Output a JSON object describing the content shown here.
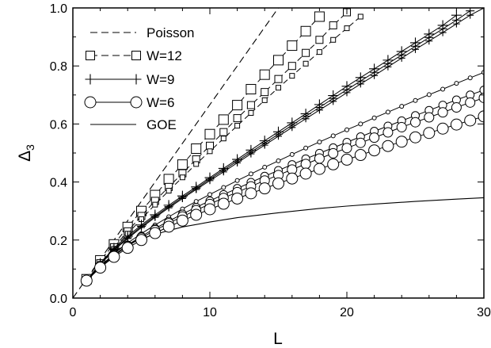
{
  "chart_data": {
    "type": "line",
    "xlabel": "L",
    "ylabel": "Δ3",
    "xlim": [
      0,
      30
    ],
    "ylim": [
      0,
      1.0
    ],
    "x_ticks": [
      "10",
      "20",
      "30"
    ],
    "x_tick_values": [
      10,
      20,
      30
    ],
    "x_zero_label": "0",
    "y_ticks": [
      "0.0",
      "0.2",
      "0.4",
      "0.6",
      "0.8",
      "1.0"
    ],
    "y_tick_values": [
      0.0,
      0.2,
      0.4,
      0.6,
      0.8,
      1.0
    ],
    "grid": false,
    "legend_position": "top-left",
    "legend": [
      {
        "label": "Poisson",
        "style": "dashed",
        "marker": "none"
      },
      {
        "label": "W=12",
        "style": "dashed",
        "marker": "square"
      },
      {
        "label": "W=9",
        "style": "solid",
        "marker": "plus"
      },
      {
        "label": "W=6",
        "style": "solid",
        "marker": "circle"
      },
      {
        "label": "GOE",
        "style": "solid",
        "marker": "none"
      }
    ],
    "poisson": {
      "x": [
        0,
        15.0
      ],
      "y": [
        0,
        1.0
      ]
    },
    "goe": {
      "x": [
        1,
        2,
        3,
        4,
        5,
        6,
        8,
        10,
        12,
        15,
        18,
        20,
        22,
        25,
        28,
        30
      ],
      "y": [
        0.05,
        0.12,
        0.16,
        0.185,
        0.205,
        0.22,
        0.245,
        0.262,
        0.277,
        0.294,
        0.309,
        0.317,
        0.324,
        0.333,
        0.341,
        0.346
      ]
    },
    "series": [
      {
        "group": "W=12",
        "marker": "square",
        "size": "large",
        "dashed": true,
        "x": [
          1,
          2,
          3,
          4,
          5,
          6,
          7,
          8,
          9,
          10,
          11,
          12,
          13,
          14,
          15,
          16,
          17,
          18
        ],
        "y": [
          0.065,
          0.13,
          0.185,
          0.245,
          0.3,
          0.355,
          0.41,
          0.46,
          0.515,
          0.565,
          0.615,
          0.665,
          0.72,
          0.77,
          0.82,
          0.87,
          0.92,
          0.97
        ]
      },
      {
        "group": "W=12",
        "marker": "square",
        "size": "medium",
        "dashed": true,
        "x": [
          1,
          2,
          3,
          4,
          5,
          6,
          7,
          8,
          9,
          10,
          11,
          12,
          13,
          14,
          15,
          16,
          17,
          18,
          19,
          20
        ],
        "y": [
          0.06,
          0.12,
          0.175,
          0.23,
          0.283,
          0.335,
          0.383,
          0.43,
          0.478,
          0.525,
          0.572,
          0.62,
          0.665,
          0.71,
          0.755,
          0.8,
          0.845,
          0.89,
          0.94,
          0.985
        ]
      },
      {
        "group": "W=12",
        "marker": "square",
        "size": "small",
        "dashed": true,
        "x": [
          1,
          2,
          3,
          4,
          5,
          6,
          7,
          8,
          9,
          10,
          11,
          12,
          13,
          14,
          15,
          16,
          17,
          18,
          19,
          20,
          21
        ],
        "y": [
          0.06,
          0.118,
          0.17,
          0.222,
          0.272,
          0.322,
          0.37,
          0.416,
          0.462,
          0.506,
          0.55,
          0.594,
          0.638,
          0.682,
          0.725,
          0.766,
          0.808,
          0.848,
          0.89,
          0.93,
          0.97
        ]
      },
      {
        "group": "W=9",
        "marker": "plus",
        "size": "large",
        "dashed": false,
        "x": [
          1,
          2,
          3,
          4,
          5,
          6,
          7,
          8,
          9,
          10,
          11,
          12,
          13,
          14,
          15,
          16,
          17,
          18,
          19,
          20,
          21,
          22,
          23,
          24,
          25,
          26,
          27,
          28
        ],
        "y": [
          0.06,
          0.12,
          0.172,
          0.213,
          0.252,
          0.287,
          0.32,
          0.352,
          0.383,
          0.415,
          0.447,
          0.478,
          0.51,
          0.542,
          0.573,
          0.604,
          0.635,
          0.667,
          0.698,
          0.73,
          0.76,
          0.79,
          0.82,
          0.85,
          0.88,
          0.91,
          0.94,
          0.975
        ]
      },
      {
        "group": "W=9",
        "marker": "plus",
        "size": "medium",
        "dashed": false,
        "x": [
          1,
          2,
          3,
          4,
          5,
          6,
          7,
          8,
          9,
          10,
          11,
          12,
          13,
          14,
          15,
          16,
          17,
          18,
          19,
          20,
          21,
          22,
          23,
          24,
          25,
          26,
          27,
          28,
          29
        ],
        "y": [
          0.06,
          0.118,
          0.168,
          0.208,
          0.247,
          0.282,
          0.315,
          0.347,
          0.378,
          0.41,
          0.441,
          0.472,
          0.503,
          0.534,
          0.565,
          0.596,
          0.627,
          0.657,
          0.688,
          0.718,
          0.748,
          0.778,
          0.808,
          0.838,
          0.868,
          0.898,
          0.928,
          0.958,
          0.99
        ]
      },
      {
        "group": "W=9",
        "marker": "plus",
        "size": "small",
        "dashed": false,
        "x": [
          1,
          2,
          3,
          4,
          5,
          6,
          7,
          8,
          9,
          10,
          11,
          12,
          13,
          14,
          15,
          16,
          17,
          18,
          19,
          20,
          21,
          22,
          23,
          24,
          25,
          26,
          27,
          28,
          29,
          30
        ],
        "y": [
          0.06,
          0.117,
          0.165,
          0.205,
          0.243,
          0.278,
          0.311,
          0.343,
          0.374,
          0.405,
          0.435,
          0.466,
          0.497,
          0.527,
          0.558,
          0.588,
          0.618,
          0.648,
          0.678,
          0.708,
          0.738,
          0.767,
          0.797,
          0.827,
          0.857,
          0.886,
          0.915,
          0.945,
          0.975,
          1.0
        ]
      },
      {
        "group": "W=6",
        "marker": "circle",
        "size": "small",
        "dashed": false,
        "x": [
          1,
          2,
          3,
          4,
          5,
          6,
          7,
          8,
          9,
          10,
          11,
          12,
          13,
          14,
          15,
          16,
          17,
          18,
          19,
          20,
          21,
          22,
          23,
          24,
          25,
          26,
          27,
          28,
          29,
          30
        ],
        "y": [
          0.06,
          0.11,
          0.152,
          0.19,
          0.222,
          0.252,
          0.28,
          0.307,
          0.333,
          0.357,
          0.381,
          0.405,
          0.428,
          0.451,
          0.473,
          0.495,
          0.517,
          0.538,
          0.559,
          0.58,
          0.6,
          0.621,
          0.641,
          0.661,
          0.681,
          0.701,
          0.72,
          0.74,
          0.759,
          0.778
        ]
      },
      {
        "group": "W=6",
        "marker": "circle",
        "size": "medium-small",
        "dashed": false,
        "x": [
          1,
          2,
          3,
          4,
          5,
          6,
          7,
          8,
          9,
          10,
          11,
          12,
          13,
          14,
          15,
          16,
          17,
          18,
          19,
          20,
          21,
          22,
          23,
          24,
          25,
          26,
          27,
          28,
          29,
          30
        ],
        "y": [
          0.06,
          0.108,
          0.148,
          0.183,
          0.213,
          0.24,
          0.265,
          0.29,
          0.313,
          0.335,
          0.357,
          0.378,
          0.399,
          0.42,
          0.44,
          0.46,
          0.48,
          0.499,
          0.518,
          0.537,
          0.556,
          0.575,
          0.593,
          0.611,
          0.629,
          0.647,
          0.665,
          0.683,
          0.7,
          0.717
        ]
      },
      {
        "group": "W=6",
        "marker": "circle",
        "size": "medium",
        "dashed": false,
        "x": [
          1,
          2,
          3,
          4,
          5,
          6,
          7,
          8,
          9,
          10,
          11,
          12,
          13,
          14,
          15,
          16,
          17,
          18,
          19,
          20,
          21,
          22,
          23,
          24,
          25,
          26,
          27,
          28,
          29,
          30
        ],
        "y": [
          0.06,
          0.107,
          0.146,
          0.179,
          0.208,
          0.234,
          0.258,
          0.281,
          0.303,
          0.324,
          0.345,
          0.365,
          0.385,
          0.405,
          0.424,
          0.443,
          0.462,
          0.481,
          0.499,
          0.517,
          0.535,
          0.553,
          0.571,
          0.589,
          0.606,
          0.623,
          0.64,
          0.657,
          0.674,
          0.69
        ]
      },
      {
        "group": "W=6",
        "marker": "circle",
        "size": "large",
        "dashed": false,
        "x": [
          1,
          2,
          3,
          4,
          5,
          6,
          7,
          8,
          9,
          10,
          11,
          12,
          13,
          14,
          15,
          16,
          17,
          18,
          19,
          20,
          21,
          22,
          23,
          24,
          25,
          26,
          27,
          28,
          29,
          30
        ],
        "y": [
          0.06,
          0.105,
          0.142,
          0.173,
          0.2,
          0.224,
          0.246,
          0.267,
          0.287,
          0.306,
          0.325,
          0.343,
          0.361,
          0.378,
          0.395,
          0.412,
          0.429,
          0.445,
          0.461,
          0.477,
          0.493,
          0.509,
          0.524,
          0.539,
          0.554,
          0.569,
          0.584,
          0.598,
          0.612,
          0.626
        ]
      }
    ]
  }
}
